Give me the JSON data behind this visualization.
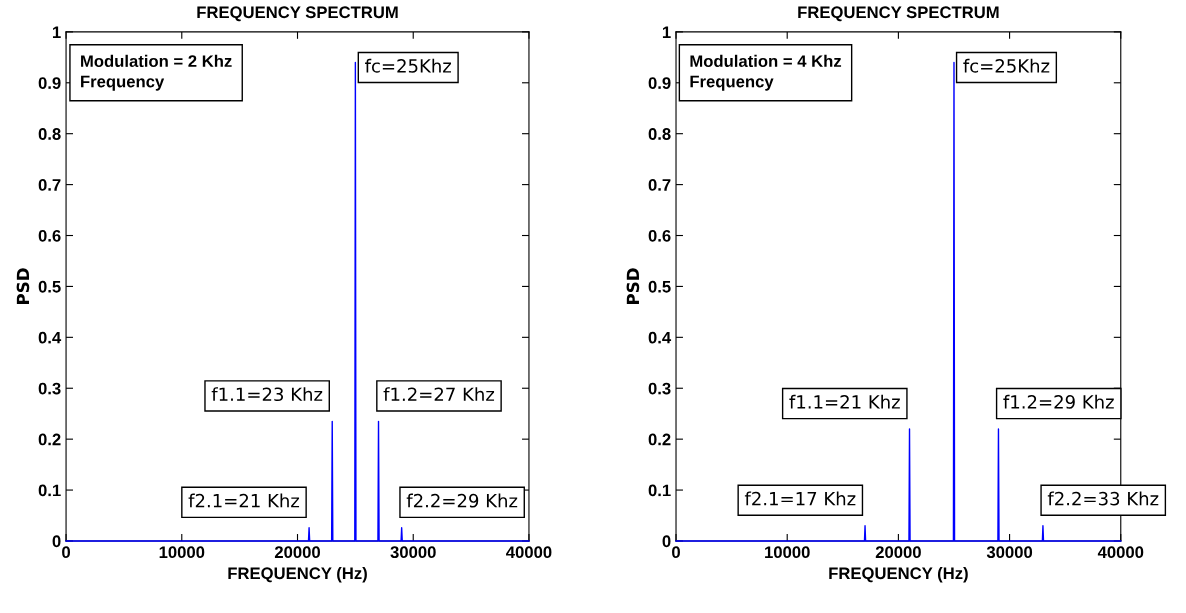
{
  "chart_data": [
    {
      "type": "line",
      "title": "FREQUENCY SPECTRUM",
      "xlabel": "FREQUENCY (Hz)",
      "ylabel": "PSD",
      "x": [
        0,
        20950,
        21000,
        21050,
        22950,
        23000,
        23050,
        24950,
        25000,
        25050,
        26950,
        27000,
        27050,
        28950,
        29000,
        29050,
        40000
      ],
      "series": [
        {
          "color": "#0000ff",
          "values": [
            0,
            0,
            0.026,
            0,
            0,
            0.235,
            0,
            0,
            0.94,
            0,
            0,
            0.235,
            0,
            0,
            0.026,
            0,
            0
          ]
        }
      ],
      "xlim": [
        0,
        40000
      ],
      "ylim": [
        0,
        1
      ],
      "xticks": [
        0,
        10000,
        20000,
        30000,
        40000
      ],
      "yticks": [
        0,
        0.1,
        0.2,
        0.3,
        0.4,
        0.5,
        0.6,
        0.7,
        0.8,
        0.9,
        1
      ],
      "annotations": [
        "Modulation = 2 Khz\nFrequency",
        {
          "text": "fc=25Khz",
          "x": 25000,
          "y": 0.94
        },
        {
          "text": "f1.1=23 Khz",
          "x": 23000,
          "y": 0.235
        },
        {
          "text": "f1.2=27 Khz",
          "x": 27000,
          "y": 0.235
        },
        {
          "text": "f2.1=21 Khz",
          "x": 21000,
          "y": 0.026
        },
        {
          "text": "f2.2=29 Khz",
          "x": 29000,
          "y": 0.026
        }
      ]
    },
    {
      "type": "line",
      "title": "FREQUENCY SPECTRUM",
      "xlabel": "FREQUENCY (Hz)",
      "ylabel": "PSD",
      "x": [
        0,
        16950,
        17000,
        17050,
        20950,
        21000,
        21050,
        24950,
        25000,
        25050,
        28950,
        29000,
        29050,
        32950,
        33000,
        33050,
        40000
      ],
      "series": [
        {
          "color": "#0000ff",
          "values": [
            0,
            0,
            0.03,
            0,
            0,
            0.22,
            0,
            0,
            0.94,
            0,
            0,
            0.22,
            0,
            0,
            0.03,
            0,
            0
          ]
        }
      ],
      "xlim": [
        0,
        40000
      ],
      "ylim": [
        0,
        1
      ],
      "xticks": [
        0,
        10000,
        20000,
        30000,
        40000
      ],
      "yticks": [
        0,
        0.1,
        0.2,
        0.3,
        0.4,
        0.5,
        0.6,
        0.7,
        0.8,
        0.9,
        1
      ],
      "annotations": [
        "Modulation = 4 Khz\nFrequency",
        {
          "text": "fc=25Khz",
          "x": 25000,
          "y": 0.94
        },
        {
          "text": "f1.1=21 Khz",
          "x": 21000,
          "y": 0.22
        },
        {
          "text": "f1.2=29 Khz",
          "x": 29000,
          "y": 0.22
        },
        {
          "text": "f2.1=17 Khz",
          "x": 17000,
          "y": 0.03
        },
        {
          "text": "f2.2=33 Khz",
          "x": 33000,
          "y": 0.03
        }
      ]
    }
  ]
}
